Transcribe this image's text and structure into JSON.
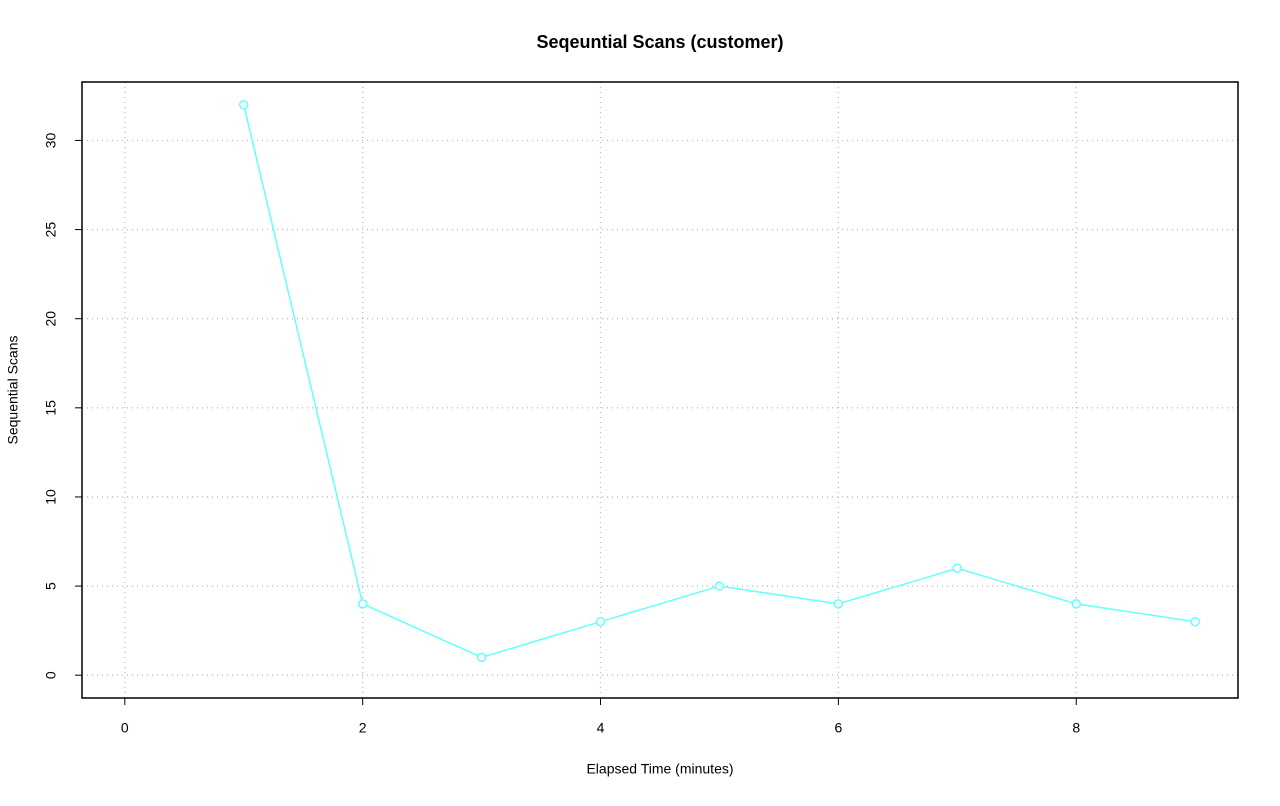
{
  "chart_data": {
    "type": "line",
    "title": "Seqeuntial Scans (customer)",
    "x_label": "Elapsed Time (minutes)",
    "y_label": "Sequential Scans",
    "x": [
      1,
      2,
      3,
      4,
      5,
      6,
      7,
      8,
      9
    ],
    "values": [
      32,
      4,
      1,
      3,
      5,
      4,
      6,
      4,
      3
    ],
    "color": "#66ffff",
    "xlim": [
      -0.36,
      9.36
    ],
    "xticks": [
      0,
      2,
      4,
      6,
      8
    ],
    "ylim": [
      -1.28,
      33.28
    ],
    "yticks": [
      0,
      5,
      10,
      15,
      20,
      25,
      30
    ],
    "grid": true
  }
}
